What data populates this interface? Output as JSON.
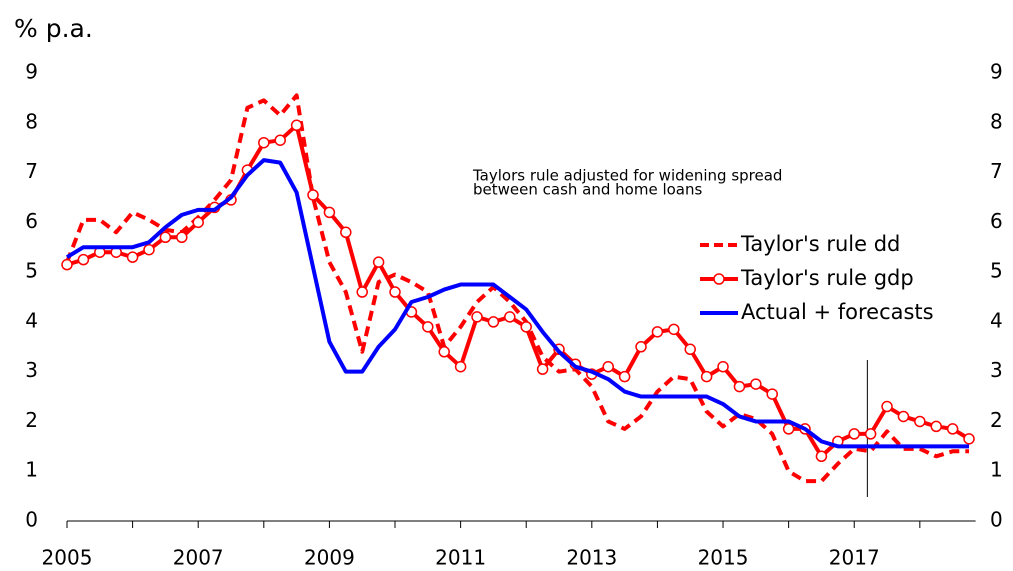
{
  "chart_data": {
    "type": "line",
    "y_label": "% p.a.",
    "annotation": [
      "Taylors rule adjusted for widening spread",
      "between cash and home loans"
    ],
    "x": [
      2005,
      2005.25,
      2005.5,
      2005.75,
      2006,
      2006.25,
      2006.5,
      2006.75,
      2007,
      2007.25,
      2007.5,
      2007.75,
      2008,
      2008.25,
      2008.5,
      2008.75,
      2009,
      2009.25,
      2009.5,
      2009.75,
      2010,
      2010.25,
      2010.5,
      2010.75,
      2011,
      2011.25,
      2011.5,
      2011.75,
      2012,
      2012.25,
      2012.5,
      2012.75,
      2013,
      2013.25,
      2013.5,
      2013.75,
      2014,
      2014.25,
      2014.5,
      2014.75,
      2015,
      2015.25,
      2015.5,
      2015.75,
      2016,
      2016.25,
      2016.5,
      2016.75,
      2017,
      2017.25,
      2017.5,
      2017.75,
      2018,
      2018.25,
      2018.5,
      2018.75
    ],
    "series": [
      {
        "name": "Taylor's rule dd",
        "color": "#ff0000",
        "dashed": true,
        "markers": false,
        "values": [
          5.2,
          6.05,
          6.05,
          5.8,
          6.2,
          6.05,
          5.85,
          5.8,
          6.1,
          6.45,
          6.85,
          8.3,
          8.45,
          8.15,
          8.55,
          6.5,
          5.2,
          4.6,
          3.4,
          4.8,
          4.95,
          4.8,
          4.6,
          3.5,
          3.9,
          4.4,
          4.7,
          4.4,
          4.0,
          3.3,
          3.0,
          3.05,
          2.7,
          2.0,
          1.85,
          2.1,
          2.6,
          2.9,
          2.85,
          2.2,
          1.9,
          2.15,
          2.05,
          1.75,
          1.0,
          0.8,
          0.8,
          1.15,
          1.45,
          1.4,
          1.8,
          1.45,
          1.45,
          1.3,
          1.4,
          1.4
        ]
      },
      {
        "name": "Taylor's rule gdp",
        "color": "#ff0000",
        "dashed": false,
        "markers": true,
        "values": [
          5.15,
          5.25,
          5.4,
          5.4,
          5.3,
          5.45,
          5.7,
          5.7,
          6.0,
          6.3,
          6.45,
          7.05,
          7.6,
          7.65,
          7.95,
          6.55,
          6.2,
          5.8,
          4.6,
          5.2,
          4.6,
          4.2,
          3.9,
          3.4,
          3.1,
          4.1,
          4.0,
          4.1,
          3.9,
          3.05,
          3.45,
          3.15,
          2.95,
          3.1,
          2.9,
          3.5,
          3.8,
          3.85,
          3.45,
          2.9,
          3.1,
          2.7,
          2.75,
          2.55,
          1.85,
          1.85,
          1.3,
          1.6,
          1.75,
          1.75,
          2.3,
          2.1,
          2.0,
          1.9,
          1.85,
          1.65
        ]
      },
      {
        "name": "Actual + forecasts",
        "color": "#0000ff",
        "dashed": false,
        "markers": false,
        "values": [
          5.3,
          5.5,
          5.5,
          5.5,
          5.5,
          5.6,
          5.9,
          6.15,
          6.25,
          6.25,
          6.5,
          6.95,
          7.25,
          7.2,
          6.6,
          5.1,
          3.6,
          3.0,
          3.0,
          3.5,
          3.85,
          4.4,
          4.5,
          4.65,
          4.75,
          4.75,
          4.75,
          4.5,
          4.25,
          3.8,
          3.4,
          3.1,
          3.0,
          2.85,
          2.6,
          2.5,
          2.5,
          2.5,
          2.5,
          2.5,
          2.35,
          2.1,
          2.0,
          2.0,
          2.0,
          1.85,
          1.6,
          1.5,
          1.5,
          1.5,
          1.5,
          1.5,
          1.5,
          1.5,
          1.5,
          1.5
        ]
      }
    ],
    "xlim": [
      2005,
      2018.85
    ],
    "xticks": [
      2005,
      2007,
      2009,
      2011,
      2013,
      2015,
      2017
    ],
    "xminorticks": [
      2006,
      2008,
      2010,
      2012,
      2014,
      2016,
      2018
    ],
    "ylim": [
      0,
      9
    ],
    "yticks": [
      0,
      1,
      2,
      3,
      4,
      5,
      6,
      7,
      8,
      9
    ],
    "right_axis_labels": true,
    "forecast_marker": 2017.2
  }
}
